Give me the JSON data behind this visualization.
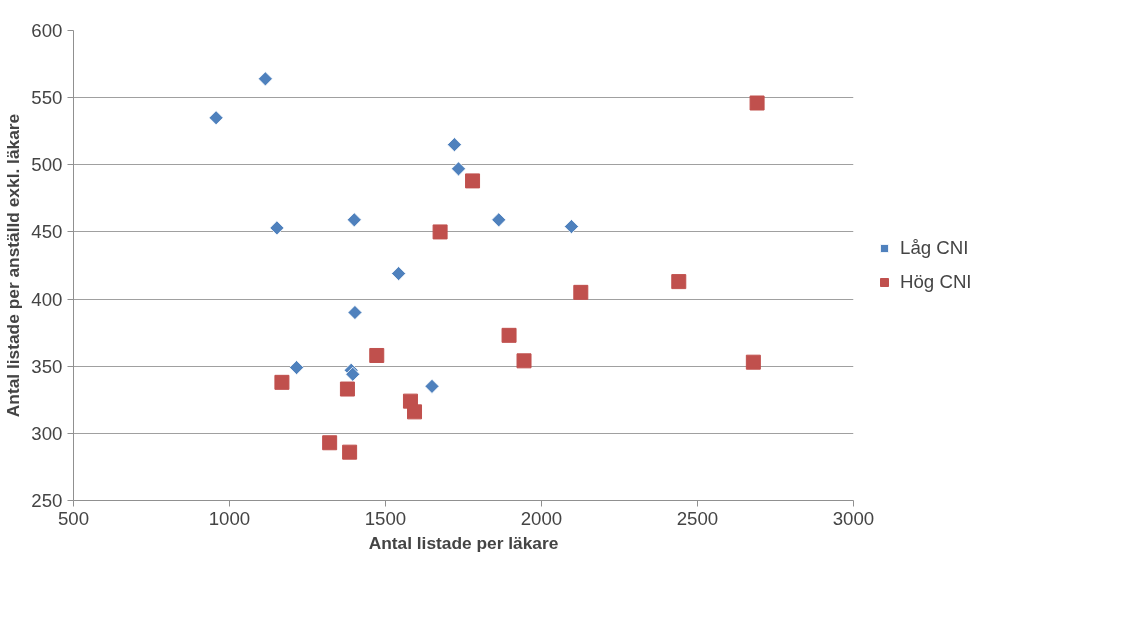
{
  "chart_data": {
    "type": "scatter",
    "xlabel": "Antal listade per läkare",
    "ylabel": "Antal listade per anställd exkl. läkare",
    "xlim": [
      500,
      3000
    ],
    "xticks": [
      500,
      1000,
      1500,
      2000,
      2500,
      3000
    ],
    "ylim": [
      250,
      600
    ],
    "yticks": [
      250,
      300,
      350,
      400,
      450,
      500,
      550,
      600
    ],
    "grid": "y",
    "legend": "right",
    "series": [
      {
        "name": "Låg CNI",
        "color": "#4f81bd",
        "marker": "diamond",
        "x": [
          957,
          1115,
          1721,
          1734,
          1152,
          1400,
          1863,
          2096,
          1542,
          1402,
          1215,
          1390,
          1395,
          1649
        ],
        "values": [
          535,
          564,
          515,
          497,
          453,
          459,
          459,
          454,
          419,
          390,
          349,
          347,
          344,
          335
        ]
      },
      {
        "name": "Hög CNI",
        "color": "#c0504d",
        "marker": "square",
        "x": [
          1675,
          1779,
          2691,
          1472,
          1168,
          1378,
          1580,
          1593,
          1321,
          1385,
          2126,
          2440,
          1896,
          1944,
          2679
        ],
        "values": [
          450,
          488,
          546,
          358,
          338,
          333,
          324,
          316,
          293,
          286,
          405,
          413,
          373,
          354,
          353
        ]
      }
    ]
  }
}
